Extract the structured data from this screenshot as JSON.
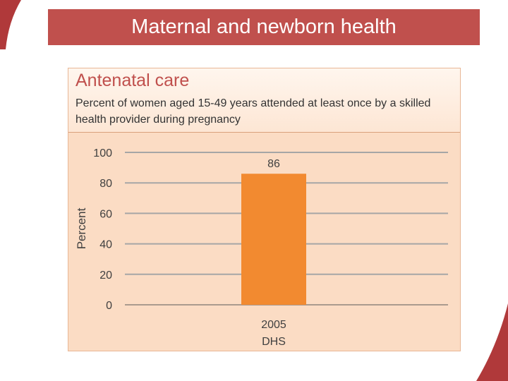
{
  "slide": {
    "title": "Maternal and newborn health"
  },
  "colors": {
    "banner": "#c0504d",
    "panel": "#fbdcc4",
    "bar": "#f28a30",
    "grid": "#a6a6a6"
  },
  "chart_data": {
    "type": "bar",
    "title": "Antenatal care",
    "subtitle": "Percent of women aged 15-49 years attended at least once by a skilled health provider during pregnancy",
    "xlabel": "",
    "ylabel": "Percent",
    "ylim": [
      0,
      100
    ],
    "yticks": [
      0,
      20,
      40,
      60,
      80,
      100
    ],
    "grid": true,
    "categories": [
      [
        "2005",
        "DHS"
      ]
    ],
    "values": [
      86
    ],
    "data_labels": [
      "86"
    ]
  }
}
